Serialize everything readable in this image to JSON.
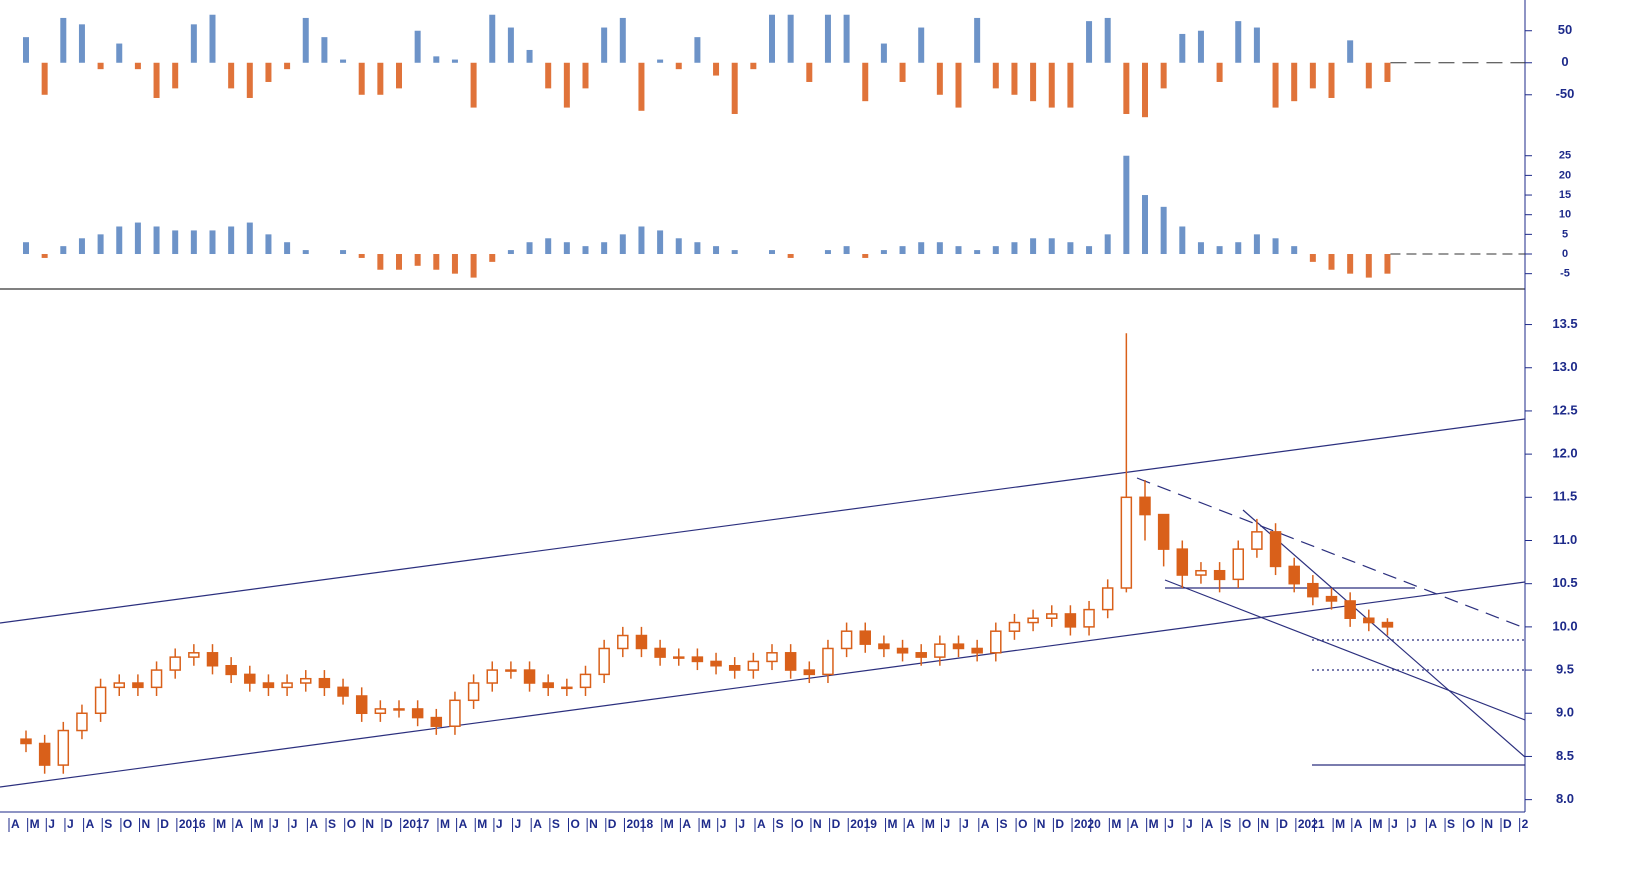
{
  "chart_data": [
    {
      "type": "bar",
      "positive_color": "#6d93c8",
      "negative_color": "#e0733a",
      "ylim": [
        -105,
        98
      ],
      "yticks": [
        50,
        0,
        -50
      ],
      "values": [
        40,
        -50,
        70,
        60,
        -10,
        30,
        -10,
        -55,
        -40,
        60,
        75,
        -40,
        -55,
        -30,
        -10,
        70,
        40,
        5,
        -50,
        -50,
        -40,
        50,
        10,
        5,
        -70,
        75,
        55,
        20,
        -40,
        -70,
        -40,
        55,
        70,
        -75,
        5,
        -10,
        40,
        -20,
        -80,
        -10,
        75,
        75,
        -30,
        75,
        75,
        -60,
        30,
        -30,
        55,
        -50,
        -70,
        70,
        -40,
        -50,
        -60,
        -70,
        -70,
        65,
        70,
        -80,
        -85,
        -40,
        45,
        50,
        -30,
        65,
        55,
        -70,
        -60,
        -40,
        -55,
        35,
        -40,
        -30,
        null,
        null,
        null,
        null,
        null,
        null,
        null,
        null
      ]
    },
    {
      "type": "bar",
      "positive_color": "#6d93c8",
      "negative_color": "#e0733a",
      "ylim": [
        -8.9,
        29
      ],
      "yticks": [
        25,
        20,
        15,
        10,
        5,
        0,
        -5
      ],
      "values": [
        3,
        -1,
        2,
        4,
        5,
        7,
        8,
        7,
        6,
        6,
        6,
        7,
        8,
        5,
        3,
        1,
        0,
        1,
        -1,
        -4,
        -4,
        -3,
        -4,
        -5,
        -6,
        -2,
        1,
        3,
        4,
        3,
        2,
        3,
        5,
        7,
        6,
        4,
        3,
        2,
        1,
        0,
        1,
        -1,
        0,
        1,
        2,
        -1,
        1,
        2,
        3,
        3,
        2,
        1,
        2,
        3,
        4,
        4,
        3,
        2,
        5,
        25,
        15,
        12,
        7,
        3,
        2,
        3,
        5,
        4,
        2,
        -2,
        -4,
        -5,
        -6,
        -5,
        null,
        null,
        null,
        null,
        null,
        null,
        null,
        null
      ]
    },
    {
      "type": "candlestick",
      "color": "#d9601a",
      "ylim": [
        7.88,
        13.9
      ],
      "yticks": [
        {
          "value": 8,
          "label": "8.0"
        },
        8.5,
        {
          "value": 9,
          "label": "9.0"
        },
        9.5,
        {
          "value": 10,
          "label": "10.0"
        },
        10.5,
        {
          "value": 11,
          "label": "11.0"
        },
        11.5,
        {
          "value": 12,
          "label": "12.0"
        },
        12.5,
        {
          "value": 13,
          "label": "13.0"
        },
        13.5
      ],
      "categories": [
        "A",
        "M",
        "J",
        "J",
        "A",
        "S",
        "O",
        "N",
        "D",
        "2016",
        null,
        "M",
        "A",
        "M",
        "J",
        "J",
        "A",
        "S",
        "O",
        "N",
        "D",
        "2017",
        null,
        "M",
        "A",
        "M",
        "J",
        "J",
        "A",
        "S",
        "O",
        "N",
        "D",
        "2018",
        null,
        "M",
        "A",
        "M",
        "J",
        "J",
        "A",
        "S",
        "O",
        "N",
        "D",
        "2019",
        null,
        "M",
        "A",
        "M",
        "J",
        "J",
        "A",
        "S",
        "O",
        "N",
        "D",
        "2020",
        null,
        "M",
        "A",
        "M",
        "J",
        "J",
        "A",
        "S",
        "O",
        "N",
        "D",
        "2021",
        null,
        "M",
        "A",
        "M",
        "J",
        "J",
        "A",
        "S",
        "O",
        "N",
        "D",
        "2"
      ],
      "open": [
        8.7,
        8.65,
        8.4,
        8.8,
        9.0,
        9.3,
        9.35,
        9.3,
        9.5,
        9.65,
        9.7,
        9.55,
        9.45,
        9.35,
        9.3,
        9.35,
        9.4,
        9.3,
        9.2,
        9.0,
        9.05,
        9.05,
        8.95,
        8.85,
        9.15,
        9.35,
        9.5,
        9.5,
        9.35,
        9.3,
        9.3,
        9.45,
        9.75,
        9.9,
        9.75,
        9.65,
        9.65,
        9.6,
        9.55,
        9.5,
        9.6,
        9.7,
        9.5,
        9.45,
        9.75,
        9.95,
        9.8,
        9.75,
        9.7,
        9.65,
        9.8,
        9.75,
        9.7,
        9.95,
        10.05,
        10.1,
        10.15,
        10.0,
        10.2,
        10.45,
        11.5,
        11.3,
        10.9,
        10.6,
        10.65,
        10.55,
        10.9,
        11.1,
        10.7,
        10.5,
        10.35,
        10.3,
        10.1,
        10.05,
        null,
        null,
        null,
        null,
        null,
        null,
        null,
        null
      ],
      "high": [
        8.8,
        8.75,
        8.9,
        9.1,
        9.4,
        9.45,
        9.45,
        9.6,
        9.75,
        9.8,
        9.8,
        9.65,
        9.55,
        9.45,
        9.45,
        9.5,
        9.5,
        9.4,
        9.3,
        9.15,
        9.15,
        9.15,
        9.05,
        9.25,
        9.45,
        9.6,
        9.6,
        9.6,
        9.45,
        9.4,
        9.55,
        9.85,
        10.0,
        10.0,
        9.85,
        9.75,
        9.75,
        9.7,
        9.65,
        9.7,
        9.8,
        9.8,
        9.6,
        9.85,
        10.05,
        10.05,
        9.9,
        9.85,
        9.8,
        9.9,
        9.9,
        9.85,
        10.05,
        10.15,
        10.2,
        10.25,
        10.25,
        10.3,
        10.55,
        13.4,
        11.7,
        11.3,
        11.0,
        10.75,
        10.75,
        11.0,
        11.25,
        11.2,
        10.8,
        10.6,
        10.45,
        10.4,
        10.2,
        10.1,
        null,
        null,
        null,
        null,
        null,
        null,
        null,
        null
      ],
      "low": [
        8.55,
        8.3,
        8.3,
        8.7,
        8.9,
        9.2,
        9.2,
        9.2,
        9.4,
        9.55,
        9.45,
        9.35,
        9.25,
        9.2,
        9.2,
        9.25,
        9.2,
        9.1,
        8.9,
        8.9,
        8.95,
        8.85,
        8.75,
        8.75,
        9.05,
        9.25,
        9.4,
        9.25,
        9.2,
        9.2,
        9.2,
        9.35,
        9.65,
        9.65,
        9.55,
        9.55,
        9.5,
        9.45,
        9.4,
        9.4,
        9.5,
        9.4,
        9.35,
        9.35,
        9.65,
        9.7,
        9.65,
        9.6,
        9.55,
        9.55,
        9.65,
        9.6,
        9.6,
        9.85,
        9.95,
        10.0,
        9.9,
        9.9,
        10.1,
        10.4,
        11.0,
        10.7,
        10.45,
        10.5,
        10.4,
        10.45,
        10.8,
        10.6,
        10.4,
        10.25,
        10.2,
        10.0,
        9.95,
        9.9,
        null,
        null,
        null,
        null,
        null,
        null,
        null,
        null
      ],
      "close": [
        8.65,
        8.4,
        8.8,
        9.0,
        9.3,
        9.35,
        9.3,
        9.5,
        9.65,
        9.7,
        9.55,
        9.45,
        9.35,
        9.3,
        9.35,
        9.4,
        9.3,
        9.2,
        9.0,
        9.05,
        9.05,
        8.95,
        8.85,
        9.15,
        9.35,
        9.5,
        9.5,
        9.35,
        9.3,
        9.3,
        9.45,
        9.75,
        9.9,
        9.75,
        9.65,
        9.65,
        9.6,
        9.55,
        9.5,
        9.6,
        9.7,
        9.5,
        9.45,
        9.75,
        9.95,
        9.8,
        9.75,
        9.7,
        9.65,
        9.8,
        9.75,
        9.7,
        9.95,
        10.05,
        10.1,
        10.15,
        10.0,
        10.2,
        10.45,
        11.5,
        11.3,
        10.9,
        10.6,
        10.65,
        10.55,
        10.9,
        11.1,
        10.7,
        10.5,
        10.35,
        10.3,
        10.1,
        10.05,
        10.0,
        null,
        null,
        null,
        null,
        null,
        null,
        null,
        null
      ]
    }
  ]
}
